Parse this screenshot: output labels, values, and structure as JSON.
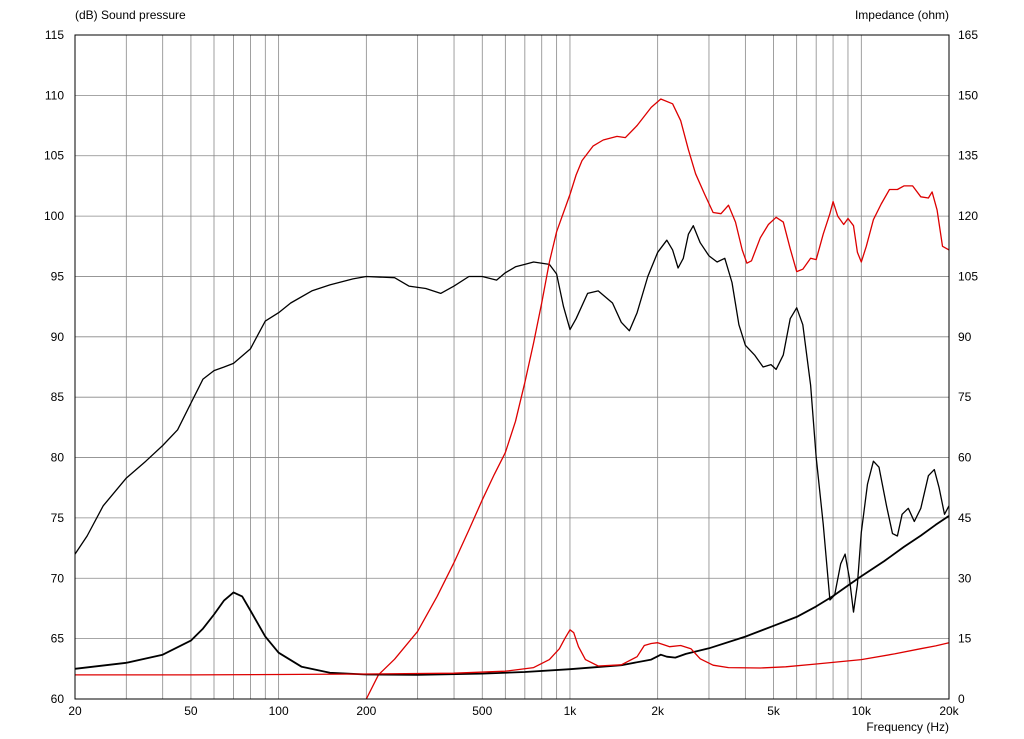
{
  "chart_data": {
    "type": "line",
    "title_left": "(dB)  Sound pressure",
    "title_right": "Impedance  (ohm)",
    "xlabel": "Frequency  (Hz)",
    "x_scale": "log",
    "xlim": [
      20,
      20000
    ],
    "ylim_left": [
      60,
      115
    ],
    "ylim_right": [
      0,
      165
    ],
    "grid": true,
    "x_tick_labels": [
      {
        "v": 20,
        "t": "20"
      },
      {
        "v": 50,
        "t": "50"
      },
      {
        "v": 100,
        "t": "100"
      },
      {
        "v": 200,
        "t": "200"
      },
      {
        "v": 500,
        "t": "500"
      },
      {
        "v": 1000,
        "t": "1k"
      },
      {
        "v": 2000,
        "t": "2k"
      },
      {
        "v": 5000,
        "t": "5k"
      },
      {
        "v": 10000,
        "t": "10k"
      },
      {
        "v": 20000,
        "t": "20k"
      }
    ],
    "y_left_ticks": [
      60,
      65,
      70,
      75,
      80,
      85,
      90,
      95,
      100,
      105,
      110,
      115
    ],
    "y_right_ticks": [
      0,
      15,
      30,
      45,
      60,
      75,
      90,
      105,
      120,
      135,
      150,
      165
    ],
    "series": [
      {
        "color": "#000000",
        "axis": "left",
        "kind": "spl",
        "points": [
          [
            20,
            72
          ],
          [
            22,
            73.5
          ],
          [
            25,
            76
          ],
          [
            30,
            78.3
          ],
          [
            35,
            79.7
          ],
          [
            40,
            81
          ],
          [
            45,
            82.3
          ],
          [
            50,
            84.5
          ],
          [
            55,
            86.5
          ],
          [
            60,
            87.2
          ],
          [
            65,
            87.5
          ],
          [
            70,
            87.8
          ],
          [
            80,
            89
          ],
          [
            85,
            90.2
          ],
          [
            90,
            91.3
          ],
          [
            100,
            92
          ],
          [
            110,
            92.8
          ],
          [
            130,
            93.8
          ],
          [
            150,
            94.3
          ],
          [
            180,
            94.8
          ],
          [
            200,
            95
          ],
          [
            250,
            94.9
          ],
          [
            280,
            94.2
          ],
          [
            320,
            94
          ],
          [
            360,
            93.6
          ],
          [
            400,
            94.2
          ],
          [
            450,
            95
          ],
          [
            500,
            95
          ],
          [
            560,
            94.7
          ],
          [
            600,
            95.3
          ],
          [
            650,
            95.8
          ],
          [
            700,
            96
          ],
          [
            750,
            96.2
          ],
          [
            850,
            96
          ],
          [
            900,
            95.2
          ],
          [
            950,
            92.5
          ],
          [
            1000,
            90.6
          ],
          [
            1050,
            91.5
          ],
          [
            1150,
            93.6
          ],
          [
            1250,
            93.8
          ],
          [
            1400,
            92.8
          ],
          [
            1500,
            91.2
          ],
          [
            1600,
            90.5
          ],
          [
            1700,
            92
          ],
          [
            1850,
            95
          ],
          [
            2000,
            97
          ],
          [
            2150,
            98
          ],
          [
            2250,
            97.2
          ],
          [
            2350,
            95.7
          ],
          [
            2450,
            96.5
          ],
          [
            2550,
            98.5
          ],
          [
            2650,
            99.2
          ],
          [
            2800,
            97.8
          ],
          [
            3000,
            96.7
          ],
          [
            3200,
            96.2
          ],
          [
            3400,
            96.5
          ],
          [
            3600,
            94.5
          ],
          [
            3800,
            91
          ],
          [
            4000,
            89.3
          ],
          [
            4300,
            88.5
          ],
          [
            4600,
            87.5
          ],
          [
            4900,
            87.7
          ],
          [
            5100,
            87.3
          ],
          [
            5400,
            88.5
          ],
          [
            5700,
            91.5
          ],
          [
            6000,
            92.4
          ],
          [
            6300,
            91
          ],
          [
            6700,
            86
          ],
          [
            7000,
            80
          ],
          [
            7400,
            74.5
          ],
          [
            7800,
            68.2
          ],
          [
            8100,
            68.6
          ],
          [
            8500,
            71.2
          ],
          [
            8800,
            72
          ],
          [
            9100,
            70
          ],
          [
            9400,
            67.2
          ],
          [
            9700,
            69.5
          ],
          [
            10000,
            73.8
          ],
          [
            10500,
            77.8
          ],
          [
            11000,
            79.7
          ],
          [
            11500,
            79.2
          ],
          [
            12200,
            76
          ],
          [
            12800,
            73.7
          ],
          [
            13300,
            73.5
          ],
          [
            13800,
            75.3
          ],
          [
            14500,
            75.8
          ],
          [
            15200,
            74.7
          ],
          [
            16000,
            75.8
          ],
          [
            17000,
            78.5
          ],
          [
            17800,
            79
          ],
          [
            18500,
            77.5
          ],
          [
            19300,
            75.3
          ],
          [
            20000,
            76
          ]
        ]
      },
      {
        "color": "#dd0000",
        "axis": "left",
        "kind": "spl",
        "points": [
          [
            200,
            60
          ],
          [
            220,
            62
          ],
          [
            250,
            63.3
          ],
          [
            300,
            65.6
          ],
          [
            350,
            68.5
          ],
          [
            400,
            71.3
          ],
          [
            450,
            74
          ],
          [
            500,
            76.5
          ],
          [
            550,
            78.6
          ],
          [
            600,
            80.4
          ],
          [
            650,
            83
          ],
          [
            700,
            86.2
          ],
          [
            750,
            89.5
          ],
          [
            800,
            92.8
          ],
          [
            850,
            96.2
          ],
          [
            900,
            98.7
          ],
          [
            1000,
            101.8
          ],
          [
            1050,
            103.4
          ],
          [
            1100,
            104.6
          ],
          [
            1200,
            105.8
          ],
          [
            1300,
            106.3
          ],
          [
            1450,
            106.6
          ],
          [
            1550,
            106.5
          ],
          [
            1700,
            107.5
          ],
          [
            1900,
            109
          ],
          [
            2050,
            109.7
          ],
          [
            2250,
            109.3
          ],
          [
            2400,
            107.9
          ],
          [
            2550,
            105.5
          ],
          [
            2700,
            103.5
          ],
          [
            2900,
            101.8
          ],
          [
            3100,
            100.3
          ],
          [
            3300,
            100.2
          ],
          [
            3500,
            100.9
          ],
          [
            3700,
            99.5
          ],
          [
            3900,
            97.2
          ],
          [
            4050,
            96.1
          ],
          [
            4200,
            96.3
          ],
          [
            4500,
            98.2
          ],
          [
            4800,
            99.3
          ],
          [
            5100,
            99.9
          ],
          [
            5400,
            99.5
          ],
          [
            5700,
            97.3
          ],
          [
            6000,
            95.4
          ],
          [
            6300,
            95.6
          ],
          [
            6700,
            96.5
          ],
          [
            7000,
            96.4
          ],
          [
            7400,
            98.5
          ],
          [
            7800,
            100.2
          ],
          [
            8000,
            101.2
          ],
          [
            8300,
            100
          ],
          [
            8700,
            99.3
          ],
          [
            9000,
            99.8
          ],
          [
            9400,
            99.2
          ],
          [
            9700,
            97
          ],
          [
            10000,
            96.2
          ],
          [
            10400,
            97.5
          ],
          [
            11000,
            99.7
          ],
          [
            11700,
            101
          ],
          [
            12500,
            102.2
          ],
          [
            13300,
            102.2
          ],
          [
            14000,
            102.5
          ],
          [
            15000,
            102.5
          ],
          [
            16000,
            101.6
          ],
          [
            17000,
            101.5
          ],
          [
            17500,
            102
          ],
          [
            18200,
            100.5
          ],
          [
            19000,
            97.5
          ],
          [
            20000,
            97.2
          ]
        ]
      },
      {
        "color": "#000000",
        "axis": "right",
        "kind": "impedance",
        "points": [
          [
            20,
            7.5
          ],
          [
            30,
            9
          ],
          [
            40,
            11
          ],
          [
            50,
            14.5
          ],
          [
            55,
            17.5
          ],
          [
            60,
            21
          ],
          [
            65,
            24.5
          ],
          [
            70,
            26.5
          ],
          [
            75,
            25.5
          ],
          [
            80,
            22
          ],
          [
            90,
            15.5
          ],
          [
            100,
            11.5
          ],
          [
            120,
            8
          ],
          [
            150,
            6.5
          ],
          [
            200,
            6.1
          ],
          [
            300,
            6
          ],
          [
            500,
            6.3
          ],
          [
            700,
            6.7
          ],
          [
            1000,
            7.4
          ],
          [
            1500,
            8.4
          ],
          [
            1900,
            9.8
          ],
          [
            2050,
            11
          ],
          [
            2150,
            10.5
          ],
          [
            2300,
            10.3
          ],
          [
            2500,
            11.2
          ],
          [
            3000,
            12.6
          ],
          [
            4000,
            15.5
          ],
          [
            5000,
            18.2
          ],
          [
            6000,
            20.4
          ],
          [
            7000,
            23
          ],
          [
            8000,
            25.6
          ],
          [
            9000,
            28.2
          ],
          [
            10000,
            30.5
          ],
          [
            12000,
            34.3
          ],
          [
            14000,
            37.8
          ],
          [
            16000,
            40.6
          ],
          [
            18000,
            43.3
          ],
          [
            20000,
            45.5
          ]
        ]
      },
      {
        "color": "#dd0000",
        "axis": "right",
        "kind": "impedance",
        "points": [
          [
            20,
            6
          ],
          [
            50,
            6
          ],
          [
            100,
            6.1
          ],
          [
            200,
            6.2
          ],
          [
            400,
            6.4
          ],
          [
            600,
            6.9
          ],
          [
            750,
            7.8
          ],
          [
            850,
            9.8
          ],
          [
            920,
            12.5
          ],
          [
            960,
            15
          ],
          [
            1000,
            17.2
          ],
          [
            1030,
            16.5
          ],
          [
            1070,
            13
          ],
          [
            1130,
            9.8
          ],
          [
            1250,
            8.2
          ],
          [
            1500,
            8.5
          ],
          [
            1700,
            10.5
          ],
          [
            1800,
            13.3
          ],
          [
            1900,
            13.8
          ],
          [
            2000,
            14
          ],
          [
            2100,
            13.5
          ],
          [
            2200,
            13
          ],
          [
            2400,
            13.3
          ],
          [
            2600,
            12.5
          ],
          [
            2800,
            10
          ],
          [
            3100,
            8.4
          ],
          [
            3500,
            7.8
          ],
          [
            4500,
            7.7
          ],
          [
            5500,
            8
          ],
          [
            7000,
            8.7
          ],
          [
            10000,
            9.8
          ],
          [
            13000,
            11.2
          ],
          [
            16000,
            12.5
          ],
          [
            18000,
            13.2
          ],
          [
            20000,
            14
          ]
        ]
      }
    ]
  }
}
